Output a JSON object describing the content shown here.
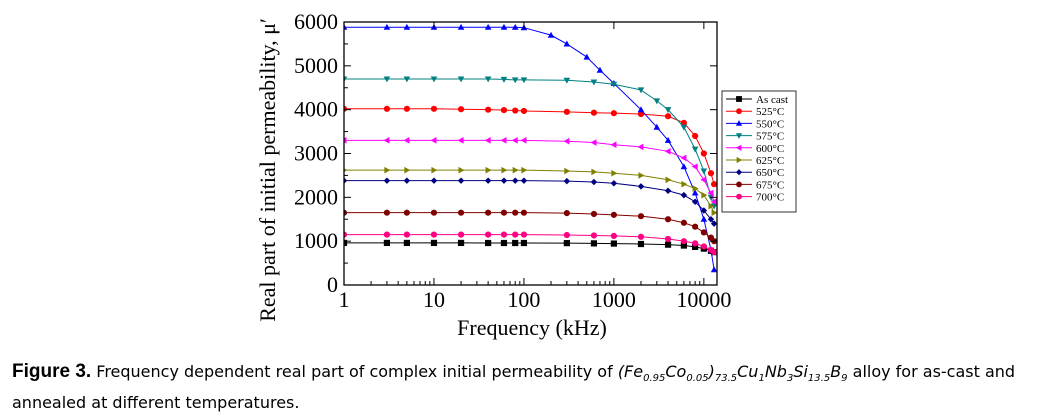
{
  "chart_data": {
    "type": "line",
    "xscale": "log",
    "xlabel": "Frequency (kHz)",
    "ylabel": "Real part of initial permeability, μ′",
    "xlim": [
      1,
      14000
    ],
    "ylim": [
      0,
      6000
    ],
    "x_ticks": [
      1,
      10,
      100,
      1000,
      10000
    ],
    "x_tick_labels": [
      "1",
      "10",
      "100",
      "1000",
      "10000"
    ],
    "y_ticks": [
      0,
      1000,
      2000,
      3000,
      4000,
      5000,
      6000
    ],
    "y_tick_labels": [
      "0",
      "1000",
      "2000",
      "3000",
      "4000",
      "5000",
      "6000"
    ],
    "legend_position": "right",
    "series": [
      {
        "name": "As cast",
        "color": "#000000",
        "marker": "square",
        "x": [
          1,
          3,
          5,
          10,
          20,
          40,
          60,
          80,
          100,
          300,
          600,
          1000,
          2000,
          4000,
          6000,
          8000,
          10000,
          12000,
          13000
        ],
        "y": [
          960,
          960,
          960,
          960,
          960,
          958,
          958,
          958,
          958,
          955,
          950,
          945,
          935,
          920,
          900,
          870,
          830,
          780,
          750
        ]
      },
      {
        "name": "525°C",
        "color": "#ff0000",
        "marker": "circle",
        "x": [
          1,
          3,
          5,
          10,
          20,
          40,
          60,
          80,
          100,
          300,
          600,
          1000,
          2000,
          4000,
          6000,
          8000,
          10000,
          12000,
          13000
        ],
        "y": [
          4020,
          4020,
          4020,
          4020,
          4010,
          4000,
          3990,
          3980,
          3970,
          3950,
          3930,
          3920,
          3900,
          3850,
          3700,
          3400,
          3000,
          2550,
          2300
        ]
      },
      {
        "name": "550°C",
        "color": "#0000ff",
        "marker": "triangle-up",
        "x": [
          1,
          3,
          5,
          10,
          20,
          40,
          60,
          80,
          100,
          200,
          300,
          500,
          700,
          1000,
          2000,
          3000,
          4000,
          6000,
          8000,
          10000,
          12000,
          13000
        ],
        "y": [
          5880,
          5880,
          5880,
          5880,
          5880,
          5880,
          5880,
          5880,
          5870,
          5700,
          5500,
          5200,
          4900,
          4600,
          4000,
          3600,
          3300,
          2700,
          2100,
          1500,
          800,
          350
        ]
      },
      {
        "name": "575°C",
        "color": "#008080",
        "marker": "triangle-down",
        "x": [
          1,
          3,
          5,
          10,
          20,
          40,
          60,
          80,
          100,
          300,
          600,
          1000,
          2000,
          3000,
          4000,
          6000,
          8000,
          10000,
          12000,
          13000
        ],
        "y": [
          4700,
          4700,
          4700,
          4700,
          4700,
          4700,
          4690,
          4680,
          4680,
          4670,
          4630,
          4580,
          4450,
          4200,
          4000,
          3600,
          3100,
          2600,
          2000,
          1800
        ]
      },
      {
        "name": "600°C",
        "color": "#ff00ff",
        "marker": "triangle-left",
        "x": [
          1,
          3,
          5,
          10,
          20,
          40,
          60,
          80,
          100,
          300,
          600,
          1000,
          2000,
          4000,
          6000,
          8000,
          10000,
          12000,
          13000
        ],
        "y": [
          3300,
          3300,
          3300,
          3300,
          3300,
          3300,
          3300,
          3300,
          3300,
          3280,
          3250,
          3200,
          3150,
          3050,
          2900,
          2700,
          2400,
          2100,
          1900
        ]
      },
      {
        "name": "625°C",
        "color": "#808000",
        "marker": "triangle-right",
        "x": [
          1,
          3,
          5,
          10,
          20,
          40,
          60,
          80,
          100,
          300,
          600,
          1000,
          2000,
          4000,
          6000,
          8000,
          10000,
          12000,
          13000
        ],
        "y": [
          2620,
          2620,
          2620,
          2620,
          2620,
          2620,
          2620,
          2620,
          2620,
          2600,
          2580,
          2550,
          2500,
          2400,
          2300,
          2200,
          2050,
          1800,
          1650
        ]
      },
      {
        "name": "650°C",
        "color": "#000080",
        "marker": "diamond",
        "x": [
          1,
          3,
          5,
          10,
          20,
          40,
          60,
          80,
          100,
          300,
          600,
          1000,
          2000,
          4000,
          6000,
          8000,
          10000,
          12000,
          13000
        ],
        "y": [
          2380,
          2380,
          2380,
          2380,
          2380,
          2380,
          2380,
          2380,
          2380,
          2370,
          2350,
          2320,
          2250,
          2150,
          2050,
          1900,
          1700,
          1500,
          1400
        ]
      },
      {
        "name": "675°C",
        "color": "#800000",
        "marker": "circle",
        "x": [
          1,
          3,
          5,
          10,
          20,
          40,
          60,
          80,
          100,
          300,
          600,
          1000,
          2000,
          4000,
          6000,
          8000,
          10000,
          12000,
          13000
        ],
        "y": [
          1650,
          1650,
          1650,
          1650,
          1650,
          1650,
          1650,
          1650,
          1650,
          1640,
          1620,
          1600,
          1570,
          1500,
          1420,
          1330,
          1200,
          1080,
          1000
        ]
      },
      {
        "name": "700°C",
        "color": "#ff0080",
        "marker": "circle",
        "x": [
          1,
          3,
          5,
          10,
          20,
          40,
          60,
          80,
          100,
          300,
          600,
          1000,
          2000,
          4000,
          6000,
          8000,
          10000,
          12000,
          13000
        ],
        "y": [
          1150,
          1150,
          1150,
          1150,
          1150,
          1150,
          1150,
          1150,
          1150,
          1140,
          1130,
          1120,
          1100,
          1050,
          1000,
          950,
          880,
          800,
          750
        ]
      }
    ]
  },
  "caption": {
    "label": "Figure 3.",
    "text_before": " Frequency dependent real part of complex initial permeability of ",
    "formula": {
      "p1": "(Fe",
      "s1": "0.95",
      "p2": "Co",
      "s2": "0.05",
      "p3": ")",
      "s3": "73.5",
      "p4": "Cu",
      "s4": "1",
      "p5": "Nb",
      "s5": "3",
      "p6": "Si",
      "s6": "13.5",
      "p7": "B",
      "s7": "9"
    },
    "text_after": " alloy for as-cast and annealed at different temperatures."
  }
}
